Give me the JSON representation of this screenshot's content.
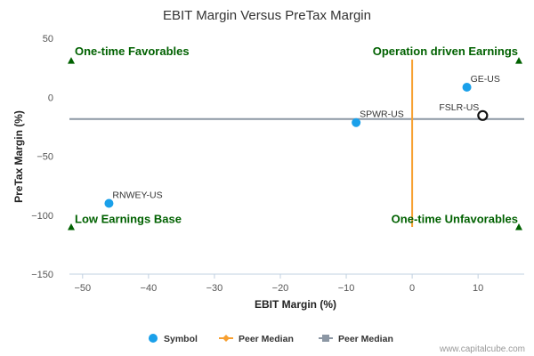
{
  "chart_data": {
    "type": "scatter",
    "title": "EBIT Margin Versus PreTax Margin",
    "xlabel": "EBIT Margin (%)",
    "ylabel": "PreTax Margin (%)",
    "xlim": [
      -52,
      17
    ],
    "ylim": [
      -150,
      50
    ],
    "xticks": [
      -50,
      -40,
      -30,
      -20,
      -10,
      0,
      10
    ],
    "yticks": [
      50,
      0,
      -50,
      -100,
      -150
    ],
    "points": [
      {
        "label": "RNWEY-US",
        "x": -46.0,
        "y": -90.0,
        "highlight": false
      },
      {
        "label": "SPWR-US",
        "x": -8.5,
        "y": -21.5,
        "highlight": false
      },
      {
        "label": "GE-US",
        "x": 8.3,
        "y": 8.5,
        "highlight": false
      },
      {
        "label": "FSLR-US",
        "x": 10.7,
        "y": -15.5,
        "highlight": true
      }
    ],
    "peer_median_x": 0.0,
    "peer_median_y": -18.5,
    "quadrant_labels": {
      "top_left": "One-time Favorables",
      "top_right": "Operation driven Earnings",
      "bottom_left": "Low Earnings Base",
      "bottom_right": "One-time Unfavorables"
    },
    "legend": {
      "placement": "bottom",
      "items": [
        {
          "name": "Symbol",
          "color": "#1aa0ea",
          "marker": "circle"
        },
        {
          "name": "Peer Median",
          "color": "#f7a031",
          "marker": "line-diamond"
        },
        {
          "name": "Peer Median",
          "color": "#8c97a4",
          "marker": "line-square"
        }
      ]
    },
    "colors": {
      "point": "#1aa0ea",
      "highlight": "#111111",
      "vertical_median": "#f7a031",
      "horizontal_median": "#8c97a4",
      "quadrant": "#006100"
    }
  },
  "credit": "www.capitalcube.com"
}
